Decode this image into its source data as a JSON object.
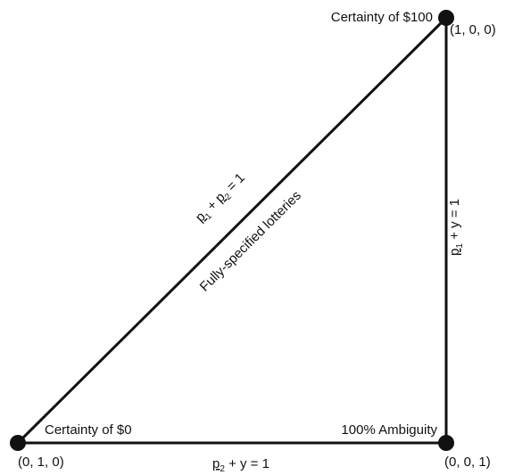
{
  "nodes": [
    {
      "label": "Certainty of $100",
      "coords": "(1, 0, 0)"
    },
    {
      "label": "Certainty of $0",
      "coords": "(0, 1, 0)"
    },
    {
      "label": "100% Ambiguity",
      "coords": "(0, 0, 1)"
    }
  ],
  "edges": [
    {
      "label": [
        "p",
        "1",
        " + ",
        "p",
        "2",
        " = 1"
      ],
      "description": "Fully-specified lotteries"
    },
    {
      "label": [
        "p",
        "2",
        " + y = 1"
      ]
    },
    {
      "label": [
        "p",
        "1",
        " + y = 1"
      ]
    }
  ]
}
